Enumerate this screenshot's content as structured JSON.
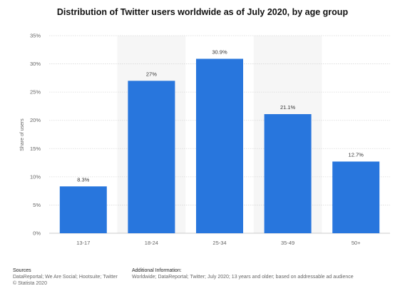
{
  "chart_data": {
    "type": "bar",
    "title": "Distribution of Twitter users worldwide as of July 2020, by age group",
    "xlabel": "",
    "ylabel": "Share of users",
    "categories": [
      "13-17",
      "18-24",
      "25-34",
      "35-49",
      "50+"
    ],
    "values": [
      8.3,
      27,
      30.9,
      21.1,
      12.7
    ],
    "value_labels": [
      "8.3%",
      "27%",
      "30.9%",
      "21.1%",
      "12.7%"
    ],
    "ylim": [
      0,
      35
    ],
    "yticks": [
      0,
      5,
      10,
      15,
      20,
      25,
      30,
      35
    ],
    "ytick_labels": [
      "0%",
      "5%",
      "10%",
      "15%",
      "20%",
      "25%",
      "30%",
      "35%"
    ],
    "grid": true,
    "legend": "none",
    "colors": {
      "bar": "#2876dd",
      "band": "#f6f6f6",
      "grid": "#d9d9d9"
    }
  },
  "footer": {
    "sources_heading": "Sources",
    "sources_text": "DataReportal; We Are Social; Hootsuite; Twitter",
    "copyright": "© Statista 2020",
    "additional_heading": "Additional Information:",
    "additional_text": "Worldwide; DataReportal; Twitter; July 2020; 13 years and older; based on addressable ad audience"
  }
}
